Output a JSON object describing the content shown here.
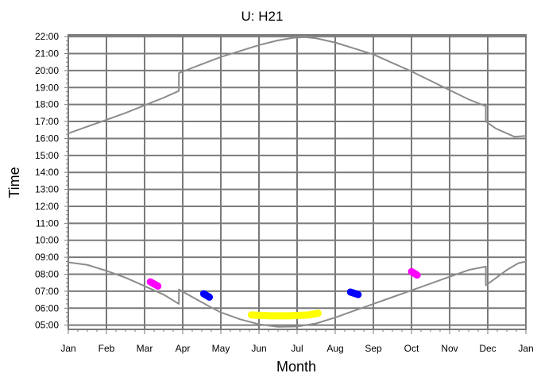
{
  "chart_data": {
    "type": "line",
    "title": "U: H21",
    "xlabel": "Month",
    "ylabel": "Time",
    "x_ticks": [
      "Jan",
      "Feb",
      "Mar",
      "Apr",
      "May",
      "Jun",
      "Jul",
      "Aug",
      "Sep",
      "Oct",
      "Nov",
      "Dec",
      "Jan"
    ],
    "y_ticks": [
      "05:00",
      "06:00",
      "07:00",
      "08:00",
      "09:00",
      "10:00",
      "11:00",
      "12:00",
      "13:00",
      "14:00",
      "15:00",
      "16:00",
      "17:00",
      "18:00",
      "19:00",
      "20:00",
      "21:00",
      "22:00"
    ],
    "x_range_months": [
      0,
      12
    ],
    "y_range_hours": [
      4.75,
      22.1
    ],
    "grid": true,
    "series": [
      {
        "color": "#8c8c8c",
        "points": [
          [
            0.0,
            16.3
          ],
          [
            0.5,
            16.7
          ],
          [
            1.0,
            17.1
          ],
          [
            1.5,
            17.5
          ],
          [
            2.0,
            17.95
          ],
          [
            2.5,
            18.4
          ],
          [
            2.8,
            18.7
          ],
          [
            2.9,
            18.8
          ],
          [
            2.9,
            19.85
          ],
          [
            3.3,
            20.2
          ],
          [
            3.7,
            20.55
          ],
          [
            4.0,
            20.8
          ],
          [
            4.5,
            21.15
          ],
          [
            5.0,
            21.5
          ],
          [
            5.5,
            21.78
          ],
          [
            5.9,
            21.93
          ],
          [
            6.2,
            21.97
          ],
          [
            6.5,
            21.9
          ],
          [
            7.0,
            21.65
          ],
          [
            7.5,
            21.3
          ],
          [
            8.0,
            20.95
          ],
          [
            8.5,
            20.45
          ],
          [
            9.0,
            19.95
          ],
          [
            9.5,
            19.4
          ],
          [
            10.0,
            18.85
          ],
          [
            10.5,
            18.3
          ],
          [
            10.95,
            17.9
          ],
          [
            10.95,
            17.0
          ],
          [
            11.2,
            16.6
          ],
          [
            11.5,
            16.3
          ],
          [
            11.7,
            16.1
          ],
          [
            12.0,
            16.15
          ]
        ]
      },
      {
        "color": "#8c8c8c",
        "points": [
          [
            0.0,
            8.7
          ],
          [
            0.5,
            8.55
          ],
          [
            1.0,
            8.2
          ],
          [
            1.5,
            7.8
          ],
          [
            2.0,
            7.3
          ],
          [
            2.5,
            6.8
          ],
          [
            2.9,
            6.25
          ],
          [
            2.9,
            7.1
          ],
          [
            3.3,
            6.6
          ],
          [
            3.7,
            6.1
          ],
          [
            4.0,
            5.75
          ],
          [
            4.5,
            5.35
          ],
          [
            5.0,
            5.05
          ],
          [
            5.5,
            4.9
          ],
          [
            6.0,
            4.92
          ],
          [
            6.5,
            5.1
          ],
          [
            7.0,
            5.45
          ],
          [
            7.5,
            5.85
          ],
          [
            8.0,
            6.25
          ],
          [
            8.5,
            6.65
          ],
          [
            9.0,
            7.05
          ],
          [
            9.5,
            7.45
          ],
          [
            10.0,
            7.85
          ],
          [
            10.5,
            8.25
          ],
          [
            10.95,
            8.45
          ],
          [
            10.95,
            7.35
          ],
          [
            11.2,
            7.75
          ],
          [
            11.5,
            8.25
          ],
          [
            11.8,
            8.65
          ],
          [
            12.0,
            8.75
          ]
        ]
      }
    ],
    "markers": [
      {
        "color": "#ff00ff",
        "points": [
          [
            2.15,
            7.55
          ],
          [
            2.35,
            7.3
          ]
        ]
      },
      {
        "color": "#0000ff",
        "points": [
          [
            3.55,
            6.85
          ],
          [
            3.7,
            6.65
          ]
        ]
      },
      {
        "color": "#ffff00",
        "points": [
          [
            4.8,
            5.6
          ],
          [
            5.3,
            5.55
          ],
          [
            5.8,
            5.55
          ],
          [
            6.3,
            5.6
          ],
          [
            6.55,
            5.7
          ]
        ]
      },
      {
        "color": "#0000ff",
        "points": [
          [
            7.4,
            6.95
          ],
          [
            7.6,
            6.8
          ]
        ]
      },
      {
        "color": "#ff00ff",
        "points": [
          [
            9.0,
            8.15
          ],
          [
            9.15,
            7.95
          ]
        ]
      }
    ]
  }
}
